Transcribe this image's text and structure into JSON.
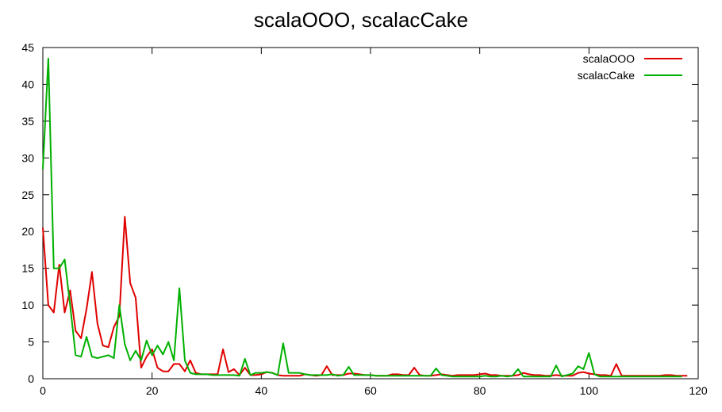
{
  "chart_data": {
    "type": "line",
    "title": "scalaOOO, scalacCake",
    "xlabel": "",
    "ylabel": "",
    "xlim": [
      0,
      120
    ],
    "ylim": [
      0,
      45
    ],
    "xticks": [
      0,
      20,
      40,
      60,
      80,
      100,
      120
    ],
    "yticks": [
      0,
      5,
      10,
      15,
      20,
      25,
      30,
      35,
      40,
      45
    ],
    "grid": false,
    "legend_position": "top-right",
    "series": [
      {
        "name": "scalaOOO",
        "color": "#e00000",
        "x": [
          0,
          1,
          2,
          3,
          4,
          5,
          6,
          7,
          8,
          9,
          10,
          11,
          12,
          13,
          14,
          15,
          16,
          17,
          18,
          19,
          20,
          21,
          22,
          23,
          24,
          25,
          26,
          27,
          28,
          29,
          30,
          31,
          32,
          33,
          34,
          35,
          36,
          37,
          38,
          39,
          40,
          41,
          42,
          43,
          44,
          45,
          46,
          47,
          48,
          49,
          50,
          51,
          52,
          53,
          54,
          55,
          56,
          57,
          58,
          59,
          60,
          61,
          62,
          63,
          64,
          65,
          66,
          67,
          68,
          69,
          70,
          71,
          72,
          73,
          74,
          75,
          76,
          77,
          78,
          79,
          80,
          81,
          82,
          83,
          84,
          85,
          86,
          87,
          88,
          89,
          90,
          91,
          92,
          93,
          94,
          95,
          96,
          97,
          98,
          99,
          100,
          101,
          102,
          103,
          104,
          105,
          106,
          107,
          108,
          109,
          110,
          111,
          112,
          113,
          114,
          115,
          116,
          117,
          118
        ],
        "y": [
          20.5,
          10,
          9,
          15.5,
          9,
          12,
          6.5,
          5.5,
          9.5,
          14.5,
          7.5,
          4.5,
          4.3,
          7,
          8.5,
          22,
          13,
          11,
          1.5,
          3,
          4,
          1.5,
          1,
          1,
          2,
          2,
          1,
          2.5,
          0.8,
          0.6,
          0.6,
          0.6,
          0.6,
          4,
          0.9,
          1.3,
          0.5,
          1.5,
          0.5,
          0.5,
          0.6,
          0.9,
          0.8,
          0.5,
          0.4,
          0.4,
          0.4,
          0.4,
          0.6,
          0.5,
          0.4,
          0.5,
          1.7,
          0.5,
          0.5,
          0.5,
          0.7,
          0.7,
          0.6,
          0.5,
          0.5,
          0.4,
          0.4,
          0.4,
          0.6,
          0.6,
          0.5,
          0.5,
          1.5,
          0.5,
          0.4,
          0.4,
          0.5,
          0.6,
          0.5,
          0.4,
          0.5,
          0.5,
          0.5,
          0.5,
          0.6,
          0.7,
          0.5,
          0.5,
          0.4,
          0.4,
          0.4,
          0.5,
          0.8,
          0.6,
          0.5,
          0.5,
          0.4,
          0.4,
          0.5,
          0.4,
          0.4,
          0.4,
          0.8,
          0.9,
          0.7,
          0.6,
          0.5,
          0.5,
          0.4,
          2,
          0.4,
          0.4,
          0.4,
          0.4,
          0.4,
          0.4,
          0.4,
          0.4,
          0.5,
          0.5,
          0.4,
          0.4,
          0.4
        ]
      },
      {
        "name": "scalacCake",
        "color": "#00b000",
        "x": [
          0,
          1,
          2,
          3,
          4,
          5,
          6,
          7,
          8,
          9,
          10,
          11,
          12,
          13,
          14,
          15,
          16,
          17,
          18,
          19,
          20,
          21,
          22,
          23,
          24,
          25,
          26,
          27,
          28,
          29,
          30,
          31,
          32,
          33,
          34,
          35,
          36,
          37,
          38,
          39,
          40,
          41,
          42,
          43,
          44,
          45,
          46,
          47,
          48,
          49,
          50,
          51,
          52,
          53,
          54,
          55,
          56,
          57,
          58,
          59,
          60,
          61,
          62,
          63,
          64,
          65,
          66,
          67,
          68,
          69,
          70,
          71,
          72,
          73,
          74,
          75,
          76,
          77,
          78,
          79,
          80,
          81,
          82,
          83,
          84,
          85,
          86,
          87,
          88,
          89,
          90,
          91,
          92,
          93,
          94,
          95,
          96,
          97,
          98,
          99,
          100,
          101,
          102,
          103,
          104,
          105,
          106,
          107,
          108,
          109,
          110,
          111,
          112,
          113,
          114,
          115,
          116,
          117
        ],
        "y": [
          28.5,
          43.5,
          15,
          15,
          16.2,
          10,
          3.2,
          3,
          5.7,
          3,
          2.8,
          3,
          3.2,
          2.8,
          10,
          4.7,
          2.5,
          3.8,
          2.5,
          5.2,
          3.2,
          4.5,
          3.3,
          5,
          2.5,
          12.3,
          2.5,
          0.8,
          0.6,
          0.6,
          0.6,
          0.5,
          0.5,
          0.5,
          0.5,
          0.5,
          0.4,
          2.7,
          0.5,
          0.8,
          0.8,
          0.9,
          0.8,
          0.5,
          4.8,
          0.8,
          0.8,
          0.8,
          0.6,
          0.5,
          0.5,
          0.5,
          0.5,
          0.6,
          0.4,
          0.5,
          1.6,
          0.5,
          0.5,
          0.5,
          0.5,
          0.4,
          0.4,
          0.4,
          0.4,
          0.4,
          0.4,
          0.4,
          0.4,
          0.4,
          0.4,
          0.4,
          1.4,
          0.5,
          0.4,
          0.3,
          0.3,
          0.3,
          0.3,
          0.3,
          0.3,
          0.4,
          0.3,
          0.3,
          0.4,
          0.3,
          0.4,
          1.3,
          0.3,
          0.3,
          0.3,
          0.3,
          0.3,
          0.3,
          1.8,
          0.3,
          0.5,
          0.7,
          1.7,
          1.3,
          3.5,
          0.6,
          0.3,
          0.3,
          0.3,
          0.3,
          0.3,
          0.3,
          0.3,
          0.3,
          0.3,
          0.3,
          0.3,
          0.3,
          0.3,
          0.3,
          0.3,
          0.3
        ]
      }
    ]
  }
}
